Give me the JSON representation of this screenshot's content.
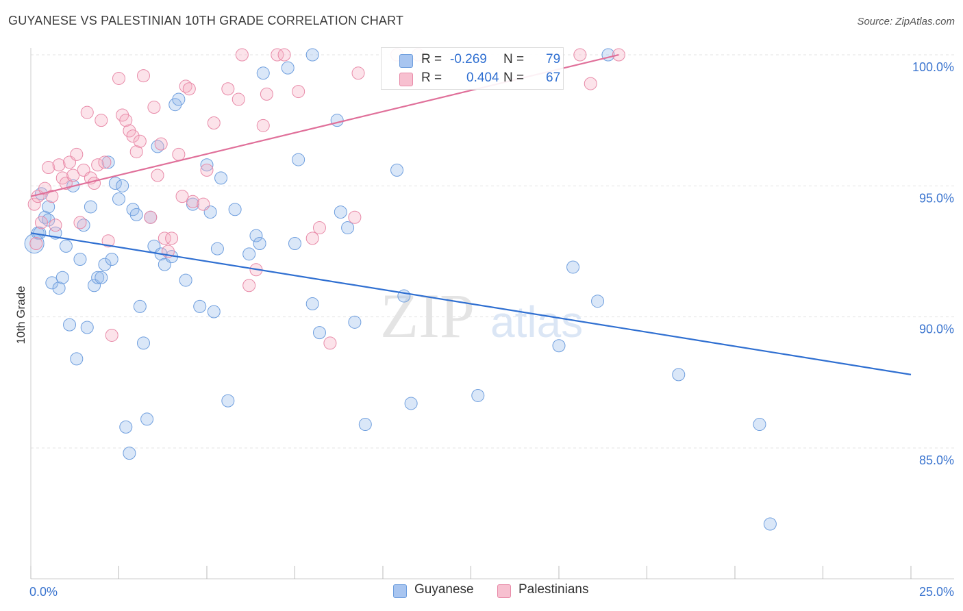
{
  "title": "GUYANESE VS PALESTINIAN 10TH GRADE CORRELATION CHART",
  "source": "Source: ZipAtlas.com",
  "watermark": {
    "zip": "ZIP",
    "atlas": "atlas"
  },
  "legend_stats": [
    {
      "r_label": "R =",
      "r_value": "-0.269",
      "n_label": "N =",
      "n_value": "79",
      "color": "#a8c5f0",
      "border": "#6e9ede"
    },
    {
      "r_label": "R =",
      "r_value": "0.404",
      "n_label": "N =",
      "n_value": "67",
      "color": "#f7c0d0",
      "border": "#e88aa8"
    }
  ],
  "bottom_legend": [
    {
      "label": "Guyanese",
      "color": "#a8c5f0",
      "border": "#6e9ede"
    },
    {
      "label": "Palestinians",
      "color": "#f7c0d0",
      "border": "#e88aa8"
    }
  ],
  "chart_data": {
    "type": "scatter",
    "title": "GUYANESE VS PALESTINIAN 10TH GRADE CORRELATION CHART",
    "xlabel": "",
    "ylabel": "10th Grade",
    "xlim": [
      0,
      25
    ],
    "ylim": [
      80.5,
      100.6
    ],
    "x_tick_labels": [
      "0.0%",
      "25.0%"
    ],
    "y_ticks": [
      85,
      90,
      95,
      100
    ],
    "y_tick_labels": [
      "85.0%",
      "90.0%",
      "95.0%",
      "100.0%"
    ],
    "grid": true,
    "legend_position": "top-center",
    "series": [
      {
        "name": "Guyanese",
        "color": "#2f6fd1",
        "point_fill": "rgba(150,185,235,0.35)",
        "point_stroke": "#6e9ede",
        "trend": {
          "x": [
            0,
            25
          ],
          "y": [
            93.2,
            87.8
          ]
        },
        "points": [
          [
            0.1,
            92.8
          ],
          [
            0.2,
            93.2
          ],
          [
            0.3,
            94.7
          ],
          [
            0.4,
            93.8
          ],
          [
            0.5,
            94.2
          ],
          [
            0.5,
            93.7
          ],
          [
            0.6,
            91.3
          ],
          [
            0.7,
            93.2
          ],
          [
            0.8,
            91.1
          ],
          [
            0.9,
            91.5
          ],
          [
            1.0,
            92.7
          ],
          [
            1.1,
            89.7
          ],
          [
            1.2,
            95.0
          ],
          [
            1.3,
            88.4
          ],
          [
            1.4,
            92.2
          ],
          [
            1.5,
            93.5
          ],
          [
            1.6,
            89.6
          ],
          [
            1.7,
            94.2
          ],
          [
            1.8,
            91.2
          ],
          [
            1.9,
            91.5
          ],
          [
            2.0,
            91.5
          ],
          [
            2.1,
            92.0
          ],
          [
            2.2,
            95.9
          ],
          [
            2.3,
            92.2
          ],
          [
            2.4,
            95.1
          ],
          [
            2.5,
            94.5
          ],
          [
            2.6,
            95.0
          ],
          [
            2.7,
            85.8
          ],
          [
            2.8,
            84.8
          ],
          [
            2.9,
            94.1
          ],
          [
            3.0,
            93.9
          ],
          [
            3.1,
            90.4
          ],
          [
            3.2,
            89.0
          ],
          [
            3.3,
            86.1
          ],
          [
            3.4,
            93.8
          ],
          [
            3.5,
            92.7
          ],
          [
            3.6,
            96.5
          ],
          [
            3.7,
            92.4
          ],
          [
            3.8,
            92.0
          ],
          [
            4.0,
            92.3
          ],
          [
            4.1,
            98.1
          ],
          [
            4.2,
            98.3
          ],
          [
            4.4,
            91.4
          ],
          [
            4.6,
            94.3
          ],
          [
            4.8,
            90.4
          ],
          [
            5.0,
            95.8
          ],
          [
            5.1,
            94.0
          ],
          [
            5.2,
            90.2
          ],
          [
            5.3,
            92.6
          ],
          [
            5.4,
            95.3
          ],
          [
            5.6,
            86.8
          ],
          [
            5.8,
            94.1
          ],
          [
            6.2,
            92.4
          ],
          [
            6.4,
            93.1
          ],
          [
            6.5,
            92.8
          ],
          [
            6.6,
            99.3
          ],
          [
            7.3,
            99.5
          ],
          [
            7.5,
            92.8
          ],
          [
            7.6,
            96.0
          ],
          [
            8.0,
            90.5
          ],
          [
            8.0,
            100.0
          ],
          [
            8.2,
            89.4
          ],
          [
            8.7,
            97.5
          ],
          [
            8.8,
            94.0
          ],
          [
            9.0,
            93.4
          ],
          [
            9.2,
            89.8
          ],
          [
            9.5,
            85.9
          ],
          [
            10.4,
            95.6
          ],
          [
            10.6,
            90.8
          ],
          [
            10.8,
            86.7
          ],
          [
            12.7,
            87.0
          ],
          [
            15.0,
            88.9
          ],
          [
            15.4,
            91.9
          ],
          [
            16.1,
            90.6
          ],
          [
            18.4,
            87.8
          ],
          [
            20.7,
            85.9
          ],
          [
            21.0,
            82.1
          ],
          [
            16.4,
            100.0
          ],
          [
            0.25,
            93.2
          ]
        ]
      },
      {
        "name": "Palestinians",
        "color": "#e0709a",
        "point_fill": "rgba(245,175,195,0.35)",
        "point_stroke": "#e88aa8",
        "trend": {
          "x": [
            0,
            16.7
          ],
          "y": [
            94.6,
            100.0
          ]
        },
        "points": [
          [
            0.1,
            94.3
          ],
          [
            0.2,
            94.6
          ],
          [
            0.3,
            93.6
          ],
          [
            0.4,
            94.9
          ],
          [
            0.5,
            95.7
          ],
          [
            0.6,
            94.6
          ],
          [
            0.7,
            93.5
          ],
          [
            0.8,
            95.8
          ],
          [
            0.9,
            95.3
          ],
          [
            1.0,
            95.1
          ],
          [
            1.1,
            95.9
          ],
          [
            1.2,
            95.4
          ],
          [
            1.3,
            96.2
          ],
          [
            1.4,
            93.6
          ],
          [
            1.5,
            95.6
          ],
          [
            1.6,
            97.8
          ],
          [
            1.7,
            95.3
          ],
          [
            1.8,
            95.1
          ],
          [
            1.9,
            95.8
          ],
          [
            2.0,
            97.5
          ],
          [
            2.1,
            95.9
          ],
          [
            2.2,
            92.9
          ],
          [
            2.3,
            89.3
          ],
          [
            2.5,
            99.1
          ],
          [
            2.6,
            97.7
          ],
          [
            2.7,
            97.5
          ],
          [
            2.8,
            97.1
          ],
          [
            2.9,
            96.9
          ],
          [
            3.0,
            96.3
          ],
          [
            3.1,
            96.7
          ],
          [
            3.2,
            99.2
          ],
          [
            3.4,
            93.8
          ],
          [
            3.5,
            98.0
          ],
          [
            3.6,
            95.4
          ],
          [
            3.7,
            96.6
          ],
          [
            3.8,
            93.0
          ],
          [
            3.9,
            92.5
          ],
          [
            4.0,
            93.0
          ],
          [
            4.2,
            96.2
          ],
          [
            4.3,
            94.6
          ],
          [
            4.4,
            98.8
          ],
          [
            4.5,
            98.7
          ],
          [
            4.6,
            94.4
          ],
          [
            4.9,
            94.3
          ],
          [
            5.0,
            95.6
          ],
          [
            5.2,
            97.4
          ],
          [
            5.6,
            98.7
          ],
          [
            5.9,
            98.3
          ],
          [
            6.0,
            100.0
          ],
          [
            6.2,
            91.2
          ],
          [
            6.4,
            91.8
          ],
          [
            6.6,
            97.3
          ],
          [
            6.7,
            98.5
          ],
          [
            7.0,
            100.0
          ],
          [
            7.2,
            100.0
          ],
          [
            7.6,
            98.6
          ],
          [
            8.0,
            93.0
          ],
          [
            8.2,
            93.4
          ],
          [
            8.5,
            89.0
          ],
          [
            9.2,
            93.8
          ],
          [
            9.3,
            99.3
          ],
          [
            10.4,
            100.0
          ],
          [
            11.0,
            100.0
          ],
          [
            15.6,
            100.0
          ],
          [
            15.9,
            98.9
          ],
          [
            16.7,
            100.0
          ],
          [
            0.15,
            92.8
          ]
        ]
      }
    ]
  }
}
